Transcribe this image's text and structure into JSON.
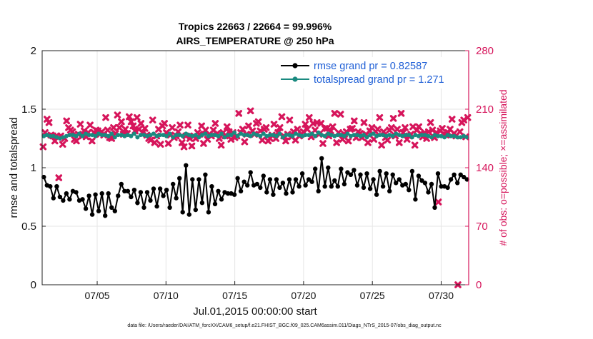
{
  "chart_data": {
    "type": "line",
    "title": "Tropics 22663 / 22664 = 99.996%",
    "subtitle": "AIRS_TEMPERATURE @ 250 hPa",
    "xlabel": "Jul.01,2015 00:00:00 start",
    "ylabel": "rmse and totalspread",
    "y2label": "# of obs: o=possible; ×=assimilated",
    "footer": "data file: /Users/raeder/DAI/ATM_forcXX/CAM6_setup/f.e21.FHIST_BGC.f09_025.CAM6assim.011/Diags_NTrS_2015-07/obs_diag_output.nc",
    "xlim": [
      1,
      32
    ],
    "ylim": [
      0,
      2
    ],
    "y2lim": [
      0,
      280
    ],
    "x_ticks": [
      5,
      10,
      15,
      20,
      25,
      30
    ],
    "x_tick_labels": [
      "07/05",
      "07/10",
      "07/15",
      "07/20",
      "07/25",
      "07/30"
    ],
    "y_ticks": [
      0,
      0.5,
      1,
      1.5,
      2
    ],
    "y_tick_labels": [
      "0",
      "0.5",
      "1",
      "1.5",
      "2"
    ],
    "y2_ticks": [
      0,
      70,
      140,
      210,
      280
    ],
    "y2_tick_labels": [
      "0",
      "70",
      "140",
      "210",
      "280"
    ],
    "grid": true,
    "legend_position": "top-right",
    "colors": {
      "rmse": "#000000",
      "spread": "#1a8a80",
      "obs": "#d6155b",
      "legend_text": "#1f5fd6",
      "right_axis": "#d6155b"
    },
    "series": [
      {
        "name": "rmse grand pr = 0.82587",
        "key": "rmse",
        "values": [
          0.92,
          0.85,
          0.84,
          0.74,
          0.84,
          0.75,
          0.72,
          0.78,
          0.73,
          0.8,
          0.79,
          0.72,
          0.73,
          0.65,
          0.76,
          0.6,
          0.77,
          0.63,
          0.78,
          0.59,
          0.78,
          0.66,
          0.63,
          0.76,
          0.86,
          0.8,
          0.8,
          0.75,
          0.81,
          0.7,
          0.79,
          0.66,
          0.79,
          0.72,
          0.82,
          0.67,
          0.82,
          0.76,
          0.81,
          0.66,
          0.86,
          0.74,
          0.91,
          0.62,
          1.02,
          0.6,
          0.9,
          0.64,
          0.9,
          0.7,
          0.94,
          0.62,
          0.84,
          0.69,
          0.8,
          0.73,
          0.79,
          0.78,
          0.78,
          0.77,
          0.91,
          0.8,
          0.88,
          0.85,
          0.96,
          0.85,
          0.86,
          0.83,
          0.93,
          0.79,
          0.9,
          0.77,
          0.9,
          0.83,
          0.87,
          0.78,
          0.9,
          0.79,
          0.9,
          0.84,
          0.95,
          0.85,
          0.9,
          0.88,
          0.99,
          0.8,
          1.08,
          0.84,
          1.0,
          0.84,
          0.89,
          0.84,
          0.99,
          0.86,
          0.96,
          0.94,
          0.98,
          0.85,
          0.94,
          0.83,
          0.95,
          0.82,
          0.9,
          0.77,
          0.97,
          0.84,
          0.95,
          0.8,
          0.94,
          0.87,
          0.9,
          0.85,
          0.86,
          0.81,
          0.97,
          0.73,
          0.93,
          0.89,
          0.87,
          0.79,
          0.86,
          0.66,
          0.95,
          0.84,
          0.84,
          0.83,
          0.9,
          0.94,
          0.87,
          0.94,
          0.92,
          0.9
        ],
        "marker": "filled circle"
      },
      {
        "name": "totalspread grand pr = 1.271",
        "key": "spread",
        "values": [
          1.27,
          1.28,
          1.27,
          1.27,
          1.26,
          1.25,
          1.26,
          1.27,
          1.28,
          1.28,
          1.27,
          1.29,
          1.27,
          1.29,
          1.28,
          1.28,
          1.27,
          1.29,
          1.28,
          1.28,
          1.27,
          1.29,
          1.26,
          1.28,
          1.28,
          1.27,
          1.28,
          1.27,
          1.29,
          1.26,
          1.28,
          1.28,
          1.27,
          1.28,
          1.29,
          1.27,
          1.28,
          1.28,
          1.27,
          1.29,
          1.26,
          1.28,
          1.28,
          1.27,
          1.29,
          1.28,
          1.27,
          1.28,
          1.26,
          1.28,
          1.29,
          1.27,
          1.28,
          1.28,
          1.27,
          1.29,
          1.26,
          1.28,
          1.28,
          1.3,
          1.27,
          1.29,
          1.28,
          1.28,
          1.27,
          1.29,
          1.28,
          1.27,
          1.29,
          1.27,
          1.28,
          1.28,
          1.27,
          1.29,
          1.26,
          1.28,
          1.28,
          1.27,
          1.29,
          1.28,
          1.27,
          1.28,
          1.28,
          1.29,
          1.27,
          1.3,
          1.28,
          1.27,
          1.29,
          1.28,
          1.27,
          1.28,
          1.28,
          1.27,
          1.29,
          1.27,
          1.28,
          1.28,
          1.27,
          1.28,
          1.26,
          1.28,
          1.29,
          1.27,
          1.28,
          1.28,
          1.27,
          1.28,
          1.27,
          1.29,
          1.28,
          1.27,
          1.28,
          1.28,
          1.26,
          1.28,
          1.27,
          1.28,
          1.28,
          1.27,
          1.26,
          1.28,
          1.27,
          1.27,
          1.26,
          1.28,
          1.27,
          1.27,
          1.26,
          1.26,
          1.27,
          1.26
        ],
        "marker": "filled circle"
      },
      {
        "name": "# of obs assimilated",
        "key": "obs",
        "axis": "right",
        "marker": "×",
        "values": [
          165,
          182,
          198,
          194,
          179,
          178,
          172,
          178,
          128,
          178,
          168,
          175,
          196,
          188,
          185,
          183,
          174,
          172,
          180,
          192,
          178,
          184,
          177,
          182,
          191,
          172,
          182,
          185,
          184,
          180,
          183,
          179,
          200,
          185,
          176,
          175,
          188,
          181,
          203,
          188,
          195,
          180,
          186,
          181,
          201,
          195,
          190,
          184,
          200,
          186,
          193,
          182,
          187,
          179,
          175,
          173,
          197,
          170,
          178,
          186,
          168,
          190,
          193,
          182,
          169,
          179,
          188,
          176,
          178,
          183,
          191,
          170,
          165,
          178,
          191,
          175,
          166,
          178,
          175,
          182,
          180,
          190,
          169,
          185,
          174,
          180,
          178,
          185,
          193,
          181,
          175,
          167,
          182,
          178,
          189,
          183,
          174,
          182,
          176,
          178,
          205,
          182,
          186,
          171,
          180,
          190,
          208,
          184,
          180,
          193,
          195,
          184,
          173,
          186,
          188,
          172,
          175,
          179,
          192,
          175,
          182,
          188,
          201,
          178,
          172,
          180,
          197,
          177,
          183,
          173,
          186,
          178,
          180,
          183,
          192,
          186,
          200,
          177,
          193,
          185,
          194,
          180,
          193,
          169,
          187,
          187,
          178,
          184,
          189,
          205,
          170,
          182,
          204,
          174,
          180,
          183,
          172,
          186,
          187,
          196,
          176,
          183,
          181,
          176,
          194,
          180,
          170,
          184,
          188,
          174,
          183,
          186,
          200,
          167,
          183,
          176,
          173,
          185,
          188,
          199,
          178,
          186,
          170,
          205,
          182,
          188,
          174,
          178,
          180,
          189,
          167,
          185,
          189,
          181,
          177,
          182,
          175,
          183,
          194,
          185,
          176,
          182,
          99,
          184,
          187,
          180,
          179,
          182,
          186,
          198,
          181,
          178,
          0,
          183,
          194,
          197,
          177,
          200
        ]
      }
    ]
  }
}
